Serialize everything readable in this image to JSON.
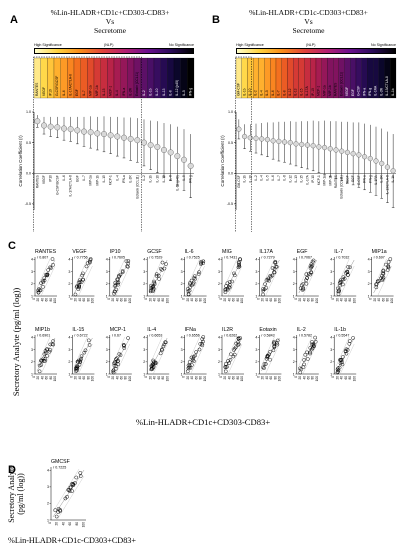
{
  "panels": {
    "A": "A",
    "B": "B",
    "C": "C",
    "D": "D"
  },
  "titleA": {
    "l1": "%Lin-HLADR+CD1c+CD303-CD83+",
    "l2": "Vs",
    "l3": "Secretome"
  },
  "titleB": {
    "l1": "%Lin-HLADR+CD1c-CD303+CD83+",
    "l2": "Vs",
    "l3": "Secretome"
  },
  "legend": {
    "high": "High Significance",
    "nlp": "(NLP)",
    "none": "No Significance"
  },
  "heatA": [
    "RANTES",
    "VEGF",
    "IP10",
    "G-CSF/GCSF",
    "IL-6",
    "IL-17A/CTLA-8",
    "EGF",
    "IL-7",
    "MIP-1a",
    "MIP-1b",
    "IL-15",
    "MCP-1",
    "IL-4",
    "IFN-a",
    "IL-2R",
    "Eotaxin (CCL11)",
    "IL-2",
    "IL-1b",
    "IL-10",
    "IL-13",
    "IL-8",
    "IL-12 (p40)",
    "IL-5",
    "IFN-g"
  ],
  "heatB": [
    "GM-CSF",
    "IL-1b",
    "IL-10",
    "IL-2",
    "IL-4",
    "IL-5",
    "IL-6",
    "IL-7",
    "IL-8",
    "IL-12",
    "IL-13",
    "IL-15",
    "IL-17A",
    "IP-10",
    "MCP-1",
    "MIP-1a",
    "MIP-1b",
    "RANTES",
    "Eotaxin (CCL11)",
    "VEGF",
    "EGF",
    "G-CSF",
    "IFN-a",
    "IFN-g",
    "IL-1RA",
    "IL-2R",
    "IL-13/CTLA-8",
    "IL-1b"
  ],
  "corrA": {
    "ylabel": "Correlation Coefficient (r)",
    "y": [
      0.85,
      0.78,
      0.76,
      0.75,
      0.73,
      0.72,
      0.7,
      0.68,
      0.67,
      0.65,
      0.64,
      0.62,
      0.6,
      0.58,
      0.56,
      0.54,
      0.5,
      0.46,
      0.43,
      0.38,
      0.34,
      0.28,
      0.22,
      0.12
    ],
    "err": [
      0.1,
      0.14,
      0.16,
      0.17,
      0.19,
      0.2,
      0.22,
      0.24,
      0.26,
      0.27,
      0.29,
      0.3,
      0.32,
      0.33,
      0.35,
      0.36,
      0.38,
      0.4,
      0.42,
      0.44,
      0.46,
      0.48,
      0.5,
      0.52
    ],
    "ticks": [
      "1.0",
      "0.5",
      "0.0",
      "-0.5"
    ]
  },
  "corrB": {
    "ylabel": "Correlation Coefficient (r)",
    "y": [
      0.72,
      0.6,
      0.58,
      0.57,
      0.56,
      0.55,
      0.53,
      0.52,
      0.51,
      0.5,
      0.48,
      0.47,
      0.46,
      0.45,
      0.43,
      0.42,
      0.4,
      0.38,
      0.36,
      0.34,
      0.32,
      0.3,
      0.27,
      0.24,
      0.2,
      0.16,
      0.1,
      0.04
    ],
    "err": [
      0.16,
      0.2,
      0.22,
      0.24,
      0.26,
      0.28,
      0.3,
      0.32,
      0.33,
      0.35,
      0.36,
      0.38,
      0.39,
      0.41,
      0.42,
      0.44,
      0.45,
      0.47,
      0.48,
      0.5,
      0.51,
      0.53,
      0.54,
      0.55,
      0.56,
      0.57,
      0.58,
      0.6
    ],
    "ticks": [
      "1.0",
      "0.5",
      "0.0",
      "-0.5"
    ]
  },
  "scatterC": [
    {
      "name": "RANTES",
      "r": "0.807"
    },
    {
      "name": "VEGF",
      "r": "0.7756"
    },
    {
      "name": "IP10",
      "r": "0.7605"
    },
    {
      "name": "GCSF",
      "r": "0.7529"
    },
    {
      "name": "IL-6",
      "r": "0.7525"
    },
    {
      "name": "MIG",
      "r": "0.7431"
    },
    {
      "name": "IL17A",
      "r": "0.7279"
    },
    {
      "name": "EGF",
      "r": "0.7067"
    },
    {
      "name": "IL-7",
      "r": "0.7032"
    },
    {
      "name": "MIP1a",
      "r": "0.697"
    },
    {
      "name": "MIP1b",
      "r": "0.6901"
    },
    {
      "name": "IL-15",
      "r": "0.6722"
    },
    {
      "name": "MCP-1",
      "r": "0.67"
    },
    {
      "name": "IL-4",
      "r": "0.6653"
    },
    {
      "name": "IFNa",
      "r": "0.6556"
    },
    {
      "name": "IL2R",
      "r": "0.6262"
    },
    {
      "name": "Eotaxin",
      "r": "0.5843"
    },
    {
      "name": "IL-2",
      "r": "0.5782"
    },
    {
      "name": "IL-1b",
      "r": "0.5547"
    }
  ],
  "scatterD": {
    "name": "GMCSF",
    "r": "0.7225"
  },
  "axisC": {
    "ylabel": "Secretory Analyte (pg/ml (log))",
    "xlabel": "%Lin-HLADR+CD1c+CD303-CD83+"
  },
  "axisD": {
    "ylabel1": "Secretory Analyte",
    "ylabel2": "(pg/ml (log))",
    "xlabel": "%Lin-HLADR+CD1c-CD303+CD83+"
  }
}
